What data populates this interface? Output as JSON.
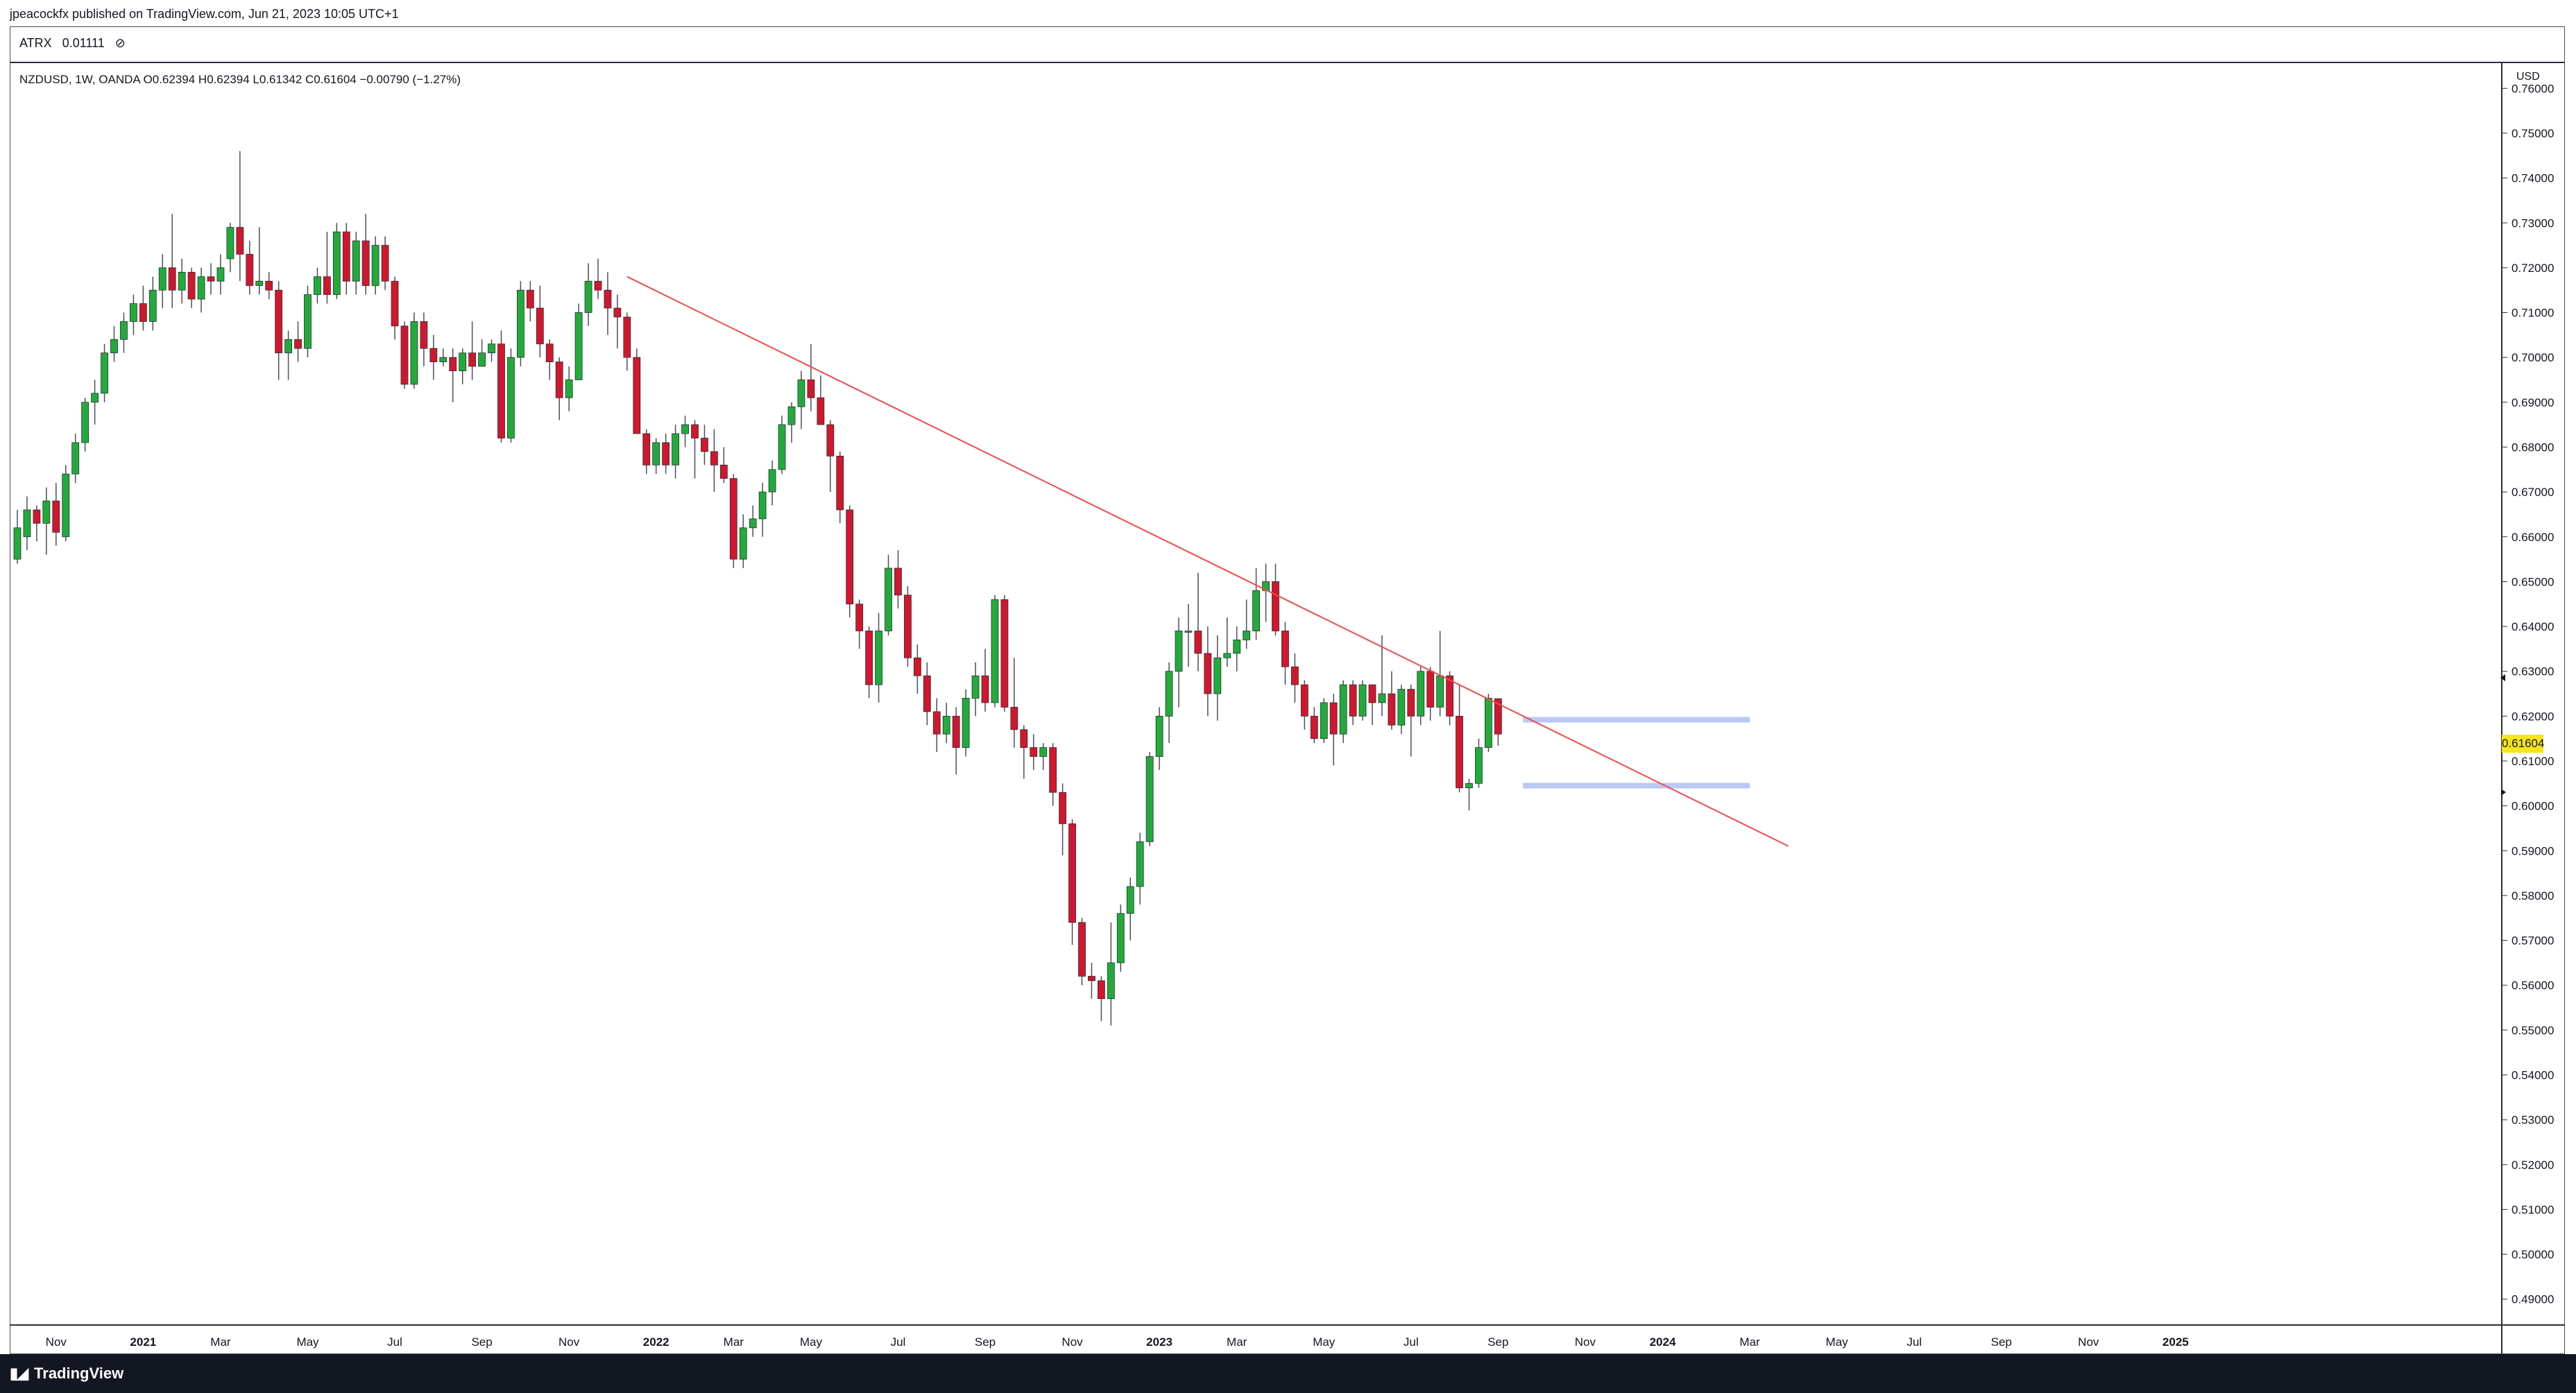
{
  "header": {
    "publisher": "jpeacockfx published on TradingView.com, Jun 21, 2023 10:05 UTC+1"
  },
  "indicator": {
    "label": "ATRX",
    "value": "0.01111",
    "icon": "eye-off-icon"
  },
  "symbol_line": "NZDUSD, 1W, OANDA  O0.62394  H0.62394  L0.61342  C0.61604  −0.00790 (−1.27%)",
  "price_axis": {
    "title": "USD",
    "current_price": "0.61604",
    "current_price_color": "#f5e51b"
  },
  "footer": {
    "brand": "TradingView",
    "icon": "tradingview-logo-icon"
  },
  "colors": {
    "up": "#22ab3a",
    "down": "#d1172d",
    "trendline": "#ef4b4b",
    "zone": "#b9c8f5"
  },
  "chart_data": {
    "type": "candlestick",
    "symbol": "NZDUSD",
    "timeframe": "1W",
    "exchange": "OANDA",
    "ylim": [
      0.485,
      0.765
    ],
    "y_ticks": [
      "0.76000",
      "0.75000",
      "0.74000",
      "0.73000",
      "0.72000",
      "0.71000",
      "0.70000",
      "0.69000",
      "0.68000",
      "0.67000",
      "0.66000",
      "0.65000",
      "0.64000",
      "0.63000",
      "0.62000",
      "0.61000",
      "0.60000",
      "0.59000",
      "0.58000",
      "0.57000",
      "0.56000",
      "0.55000",
      "0.54000",
      "0.53000",
      "0.52000",
      "0.51000",
      "0.50000",
      "0.49000"
    ],
    "x_ticks": [
      {
        "label": "Nov",
        "week": 4
      },
      {
        "label": "2021",
        "week": 13
      },
      {
        "label": "Mar",
        "week": 21
      },
      {
        "label": "May",
        "week": 30
      },
      {
        "label": "Jul",
        "week": 39
      },
      {
        "label": "Sep",
        "week": 48
      },
      {
        "label": "Nov",
        "week": 57
      },
      {
        "label": "2022",
        "week": 66
      },
      {
        "label": "Mar",
        "week": 74
      },
      {
        "label": "May",
        "week": 82
      },
      {
        "label": "Jul",
        "week": 91
      },
      {
        "label": "Sep",
        "week": 100
      },
      {
        "label": "Nov",
        "week": 109
      },
      {
        "label": "2023",
        "week": 118
      },
      {
        "label": "Mar",
        "week": 126
      },
      {
        "label": "May",
        "week": 135
      },
      {
        "label": "Jul",
        "week": 144
      },
      {
        "label": "Sep",
        "week": 153
      },
      {
        "label": "Nov",
        "week": 162
      },
      {
        "label": "2024",
        "week": 170
      },
      {
        "label": "Mar",
        "week": 179
      },
      {
        "label": "May",
        "week": 188
      },
      {
        "label": "Jul",
        "week": 196
      },
      {
        "label": "Sep",
        "week": 205
      },
      {
        "label": "Nov",
        "week": 214
      },
      {
        "label": "2025",
        "week": 223
      }
    ],
    "candles": [
      [
        0.655,
        0.662,
        0.654,
        0.666
      ],
      [
        0.66,
        0.666,
        0.657,
        0.669
      ],
      [
        0.666,
        0.663,
        0.659,
        0.667
      ],
      [
        0.663,
        0.668,
        0.656,
        0.671
      ],
      [
        0.668,
        0.661,
        0.658,
        0.672
      ],
      [
        0.66,
        0.674,
        0.659,
        0.676
      ],
      [
        0.674,
        0.681,
        0.672,
        0.683
      ],
      [
        0.681,
        0.69,
        0.679,
        0.691
      ],
      [
        0.69,
        0.692,
        0.685,
        0.695
      ],
      [
        0.692,
        0.701,
        0.69,
        0.703
      ],
      [
        0.701,
        0.704,
        0.699,
        0.707
      ],
      [
        0.704,
        0.708,
        0.701,
        0.71
      ],
      [
        0.708,
        0.712,
        0.705,
        0.714
      ],
      [
        0.712,
        0.708,
        0.706,
        0.716
      ],
      [
        0.708,
        0.715,
        0.706,
        0.718
      ],
      [
        0.715,
        0.72,
        0.711,
        0.723
      ],
      [
        0.72,
        0.715,
        0.711,
        0.732
      ],
      [
        0.715,
        0.719,
        0.712,
        0.722
      ],
      [
        0.719,
        0.713,
        0.711,
        0.72
      ],
      [
        0.713,
        0.718,
        0.71,
        0.72
      ],
      [
        0.718,
        0.717,
        0.714,
        0.721
      ],
      [
        0.717,
        0.72,
        0.714,
        0.723
      ],
      [
        0.722,
        0.729,
        0.719,
        0.73
      ],
      [
        0.729,
        0.723,
        0.717,
        0.746
      ],
      [
        0.723,
        0.716,
        0.714,
        0.726
      ],
      [
        0.716,
        0.717,
        0.714,
        0.729
      ],
      [
        0.717,
        0.715,
        0.713,
        0.719
      ],
      [
        0.715,
        0.701,
        0.695,
        0.717
      ],
      [
        0.701,
        0.704,
        0.695,
        0.706
      ],
      [
        0.704,
        0.702,
        0.699,
        0.708
      ],
      [
        0.702,
        0.714,
        0.7,
        0.716
      ],
      [
        0.714,
        0.718,
        0.712,
        0.72
      ],
      [
        0.718,
        0.714,
        0.712,
        0.728
      ],
      [
        0.714,
        0.728,
        0.713,
        0.73
      ],
      [
        0.728,
        0.717,
        0.714,
        0.73
      ],
      [
        0.717,
        0.726,
        0.714,
        0.728
      ],
      [
        0.726,
        0.716,
        0.714,
        0.732
      ],
      [
        0.716,
        0.725,
        0.714,
        0.727
      ],
      [
        0.725,
        0.717,
        0.715,
        0.727
      ],
      [
        0.717,
        0.707,
        0.704,
        0.718
      ],
      [
        0.707,
        0.694,
        0.693,
        0.708
      ],
      [
        0.694,
        0.708,
        0.693,
        0.71
      ],
      [
        0.708,
        0.702,
        0.698,
        0.71
      ],
      [
        0.702,
        0.699,
        0.695,
        0.705
      ],
      [
        0.699,
        0.7,
        0.698,
        0.702
      ],
      [
        0.7,
        0.697,
        0.69,
        0.702
      ],
      [
        0.697,
        0.701,
        0.694,
        0.702
      ],
      [
        0.701,
        0.698,
        0.695,
        0.708
      ],
      [
        0.698,
        0.701,
        0.698,
        0.704
      ],
      [
        0.701,
        0.703,
        0.699,
        0.704
      ],
      [
        0.703,
        0.682,
        0.681,
        0.706
      ],
      [
        0.682,
        0.7,
        0.681,
        0.702
      ],
      [
        0.7,
        0.715,
        0.698,
        0.717
      ],
      [
        0.715,
        0.711,
        0.708,
        0.717
      ],
      [
        0.711,
        0.703,
        0.7,
        0.716
      ],
      [
        0.703,
        0.699,
        0.695,
        0.704
      ],
      [
        0.699,
        0.691,
        0.686,
        0.7
      ],
      [
        0.691,
        0.695,
        0.688,
        0.698
      ],
      [
        0.695,
        0.71,
        0.695,
        0.712
      ],
      [
        0.71,
        0.717,
        0.707,
        0.721
      ],
      [
        0.717,
        0.715,
        0.713,
        0.722
      ],
      [
        0.715,
        0.711,
        0.705,
        0.719
      ],
      [
        0.711,
        0.709,
        0.702,
        0.714
      ],
      [
        0.709,
        0.7,
        0.697,
        0.71
      ],
      [
        0.7,
        0.683,
        0.683,
        0.702
      ],
      [
        0.683,
        0.676,
        0.674,
        0.684
      ],
      [
        0.676,
        0.681,
        0.674,
        0.682
      ],
      [
        0.681,
        0.676,
        0.674,
        0.683
      ],
      [
        0.676,
        0.683,
        0.673,
        0.685
      ],
      [
        0.683,
        0.685,
        0.68,
        0.687
      ],
      [
        0.685,
        0.682,
        0.673,
        0.686
      ],
      [
        0.682,
        0.679,
        0.676,
        0.685
      ],
      [
        0.679,
        0.676,
        0.67,
        0.684
      ],
      [
        0.676,
        0.673,
        0.672,
        0.68
      ],
      [
        0.673,
        0.655,
        0.653,
        0.674
      ],
      [
        0.655,
        0.662,
        0.653,
        0.665
      ],
      [
        0.662,
        0.664,
        0.66,
        0.667
      ],
      [
        0.664,
        0.67,
        0.66,
        0.672
      ],
      [
        0.67,
        0.675,
        0.667,
        0.677
      ],
      [
        0.675,
        0.685,
        0.674,
        0.687
      ],
      [
        0.685,
        0.689,
        0.681,
        0.69
      ],
      [
        0.689,
        0.695,
        0.684,
        0.697
      ],
      [
        0.695,
        0.691,
        0.688,
        0.703
      ],
      [
        0.691,
        0.685,
        0.685,
        0.696
      ],
      [
        0.685,
        0.678,
        0.67,
        0.686
      ],
      [
        0.678,
        0.666,
        0.663,
        0.679
      ],
      [
        0.666,
        0.645,
        0.642,
        0.667
      ],
      [
        0.645,
        0.639,
        0.635,
        0.646
      ],
      [
        0.639,
        0.627,
        0.624,
        0.64
      ],
      [
        0.627,
        0.639,
        0.623,
        0.643
      ],
      [
        0.639,
        0.653,
        0.638,
        0.656
      ],
      [
        0.653,
        0.647,
        0.644,
        0.657
      ],
      [
        0.647,
        0.633,
        0.631,
        0.649
      ],
      [
        0.633,
        0.629,
        0.625,
        0.636
      ],
      [
        0.629,
        0.621,
        0.618,
        0.632
      ],
      [
        0.621,
        0.616,
        0.612,
        0.624
      ],
      [
        0.616,
        0.62,
        0.614,
        0.623
      ],
      [
        0.62,
        0.613,
        0.607,
        0.622
      ],
      [
        0.613,
        0.624,
        0.611,
        0.626
      ],
      [
        0.624,
        0.629,
        0.62,
        0.632
      ],
      [
        0.629,
        0.623,
        0.621,
        0.635
      ],
      [
        0.623,
        0.646,
        0.622,
        0.647
      ],
      [
        0.646,
        0.622,
        0.621,
        0.647
      ],
      [
        0.622,
        0.617,
        0.613,
        0.633
      ],
      [
        0.617,
        0.613,
        0.606,
        0.618
      ],
      [
        0.613,
        0.611,
        0.608,
        0.616
      ],
      [
        0.611,
        0.613,
        0.608,
        0.614
      ],
      [
        0.613,
        0.603,
        0.6,
        0.614
      ],
      [
        0.603,
        0.596,
        0.589,
        0.605
      ],
      [
        0.596,
        0.574,
        0.569,
        0.597
      ],
      [
        0.574,
        0.562,
        0.56,
        0.575
      ],
      [
        0.562,
        0.561,
        0.557,
        0.565
      ],
      [
        0.561,
        0.557,
        0.552,
        0.562
      ],
      [
        0.557,
        0.565,
        0.551,
        0.574
      ],
      [
        0.565,
        0.576,
        0.563,
        0.578
      ],
      [
        0.576,
        0.582,
        0.57,
        0.584
      ],
      [
        0.582,
        0.592,
        0.578,
        0.594
      ],
      [
        0.592,
        0.611,
        0.591,
        0.612
      ],
      [
        0.611,
        0.62,
        0.608,
        0.622
      ],
      [
        0.62,
        0.63,
        0.614,
        0.632
      ],
      [
        0.63,
        0.639,
        0.622,
        0.642
      ],
      [
        0.639,
        0.639,
        0.631,
        0.645
      ],
      [
        0.639,
        0.634,
        0.63,
        0.652
      ],
      [
        0.634,
        0.625,
        0.62,
        0.64
      ],
      [
        0.625,
        0.633,
        0.619,
        0.638
      ],
      [
        0.633,
        0.634,
        0.631,
        0.642
      ],
      [
        0.634,
        0.637,
        0.63,
        0.64
      ],
      [
        0.637,
        0.639,
        0.635,
        0.646
      ],
      [
        0.639,
        0.648,
        0.637,
        0.653
      ],
      [
        0.648,
        0.65,
        0.641,
        0.654
      ],
      [
        0.65,
        0.639,
        0.638,
        0.654
      ],
      [
        0.639,
        0.631,
        0.627,
        0.641
      ],
      [
        0.631,
        0.627,
        0.623,
        0.634
      ],
      [
        0.627,
        0.62,
        0.617,
        0.628
      ],
      [
        0.62,
        0.615,
        0.614,
        0.622
      ],
      [
        0.615,
        0.623,
        0.614,
        0.624
      ],
      [
        0.623,
        0.616,
        0.609,
        0.625
      ],
      [
        0.616,
        0.627,
        0.614,
        0.628
      ],
      [
        0.627,
        0.62,
        0.618,
        0.628
      ],
      [
        0.62,
        0.627,
        0.619,
        0.628
      ],
      [
        0.627,
        0.623,
        0.618,
        0.627
      ],
      [
        0.623,
        0.625,
        0.62,
        0.638
      ],
      [
        0.625,
        0.618,
        0.617,
        0.63
      ],
      [
        0.618,
        0.626,
        0.616,
        0.627
      ],
      [
        0.626,
        0.62,
        0.611,
        0.627
      ],
      [
        0.62,
        0.63,
        0.618,
        0.631
      ],
      [
        0.63,
        0.622,
        0.619,
        0.631
      ],
      [
        0.622,
        0.629,
        0.62,
        0.639
      ],
      [
        0.629,
        0.62,
        0.618,
        0.63
      ],
      [
        0.62,
        0.604,
        0.603,
        0.627
      ],
      [
        0.604,
        0.605,
        0.599,
        0.606
      ],
      [
        0.605,
        0.613,
        0.604,
        0.615
      ],
      [
        0.613,
        0.624,
        0.612,
        0.625
      ],
      [
        0.6239,
        0.616,
        0.6134,
        0.6239
      ]
    ],
    "trendline": [
      {
        "week": 63,
        "price": 0.718
      },
      {
        "week": 183,
        "price": 0.591
      }
    ],
    "zones": [
      {
        "from_week": 156,
        "to_week": 179,
        "price": 0.6192
      },
      {
        "from_week": 156,
        "to_week": 179,
        "price": 0.6045
      }
    ]
  }
}
